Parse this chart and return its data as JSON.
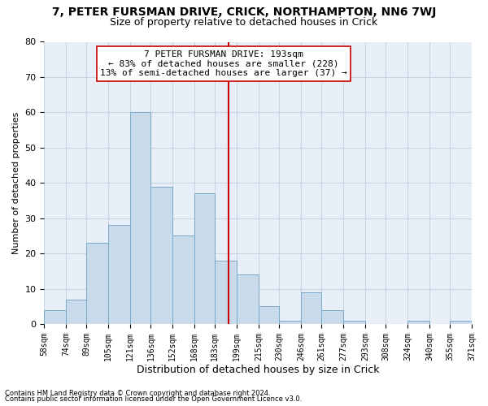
{
  "title": "7, PETER FURSMAN DRIVE, CRICK, NORTHAMPTON, NN6 7WJ",
  "subtitle": "Size of property relative to detached houses in Crick",
  "xlabel": "Distribution of detached houses by size in Crick",
  "ylabel": "Number of detached properties",
  "footnote1": "Contains HM Land Registry data © Crown copyright and database right 2024.",
  "footnote2": "Contains public sector information licensed under the Open Government Licence v3.0.",
  "property_label": "7 PETER FURSMAN DRIVE: 193sqm",
  "annotation_line1": "← 83% of detached houses are smaller (228)",
  "annotation_line2": "13% of semi-detached houses are larger (37) →",
  "bin_edges": [
    58,
    74,
    89,
    105,
    121,
    136,
    152,
    168,
    183,
    199,
    215,
    230,
    246,
    261,
    277,
    293,
    308,
    324,
    340,
    355,
    371
  ],
  "bar_heights": [
    4,
    7,
    23,
    28,
    60,
    39,
    25,
    37,
    18,
    14,
    5,
    1,
    9,
    4,
    1,
    0,
    0,
    1,
    0,
    1
  ],
  "bar_color": "#c9daea",
  "bar_edge_color": "#7aaac8",
  "vline_color": "#cc0000",
  "vline_x": 193,
  "annotation_box_color": "#ffffff",
  "annotation_box_edge": "#cc0000",
  "ylim": [
    0,
    80
  ],
  "yticks": [
    0,
    10,
    20,
    30,
    40,
    50,
    60,
    70,
    80
  ],
  "grid_color": "#c8d4e4",
  "background_color": "#e8eff8",
  "title_fontsize": 10,
  "subtitle_fontsize": 9,
  "xlabel_fontsize": 9,
  "ylabel_fontsize": 8,
  "tick_fontsize": 7,
  "annot_fontsize": 8,
  "footnote_fontsize": 6
}
